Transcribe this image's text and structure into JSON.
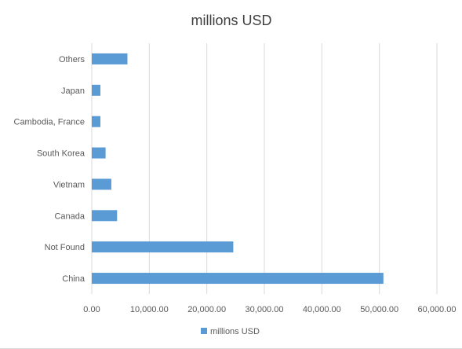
{
  "chart_data": {
    "type": "bar",
    "orientation": "horizontal",
    "title": "millions USD",
    "categories": [
      "China",
      "Not Found",
      "Canada",
      "Vietnam",
      "South Korea",
      "Cambodia, France",
      "Japan",
      "Others"
    ],
    "series": [
      {
        "name": "millions USD",
        "values": [
          50700,
          24600,
          4400,
          3400,
          2400,
          1500,
          1500,
          6200
        ],
        "color": "#5b9bd5"
      }
    ],
    "x_ticks": [
      "0.00",
      "10,000.00",
      "20,000.00",
      "30,000.00",
      "40,000.00",
      "50,000.00",
      "60,000.00"
    ],
    "xlim": [
      0,
      60000
    ],
    "grid": "vertical",
    "legend_position": "bottom"
  }
}
